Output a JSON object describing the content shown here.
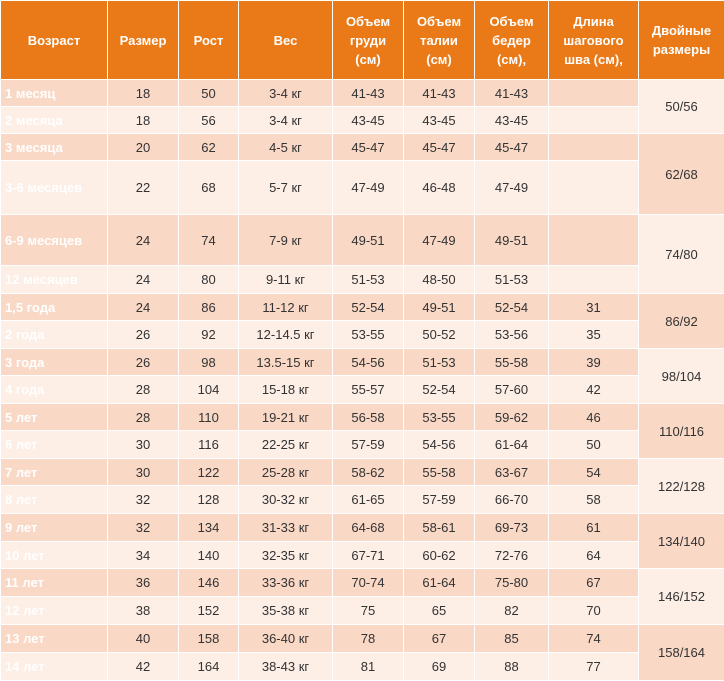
{
  "table": {
    "header": [
      "Возраст",
      "Размер",
      "Рост",
      "Вес",
      "Объем груди (см)",
      "Объем талии (см)",
      "Объем бедер (см),",
      "Длина шагового шва (см),",
      "Двойные размеры"
    ],
    "rows": [
      [
        "1 месяц",
        "18",
        "50",
        "3-4 кг",
        "41-43",
        "41-43",
        "41-43",
        null
      ],
      [
        "2 месяца",
        "18",
        "56",
        "3-4 кг",
        "43-45",
        "43-45",
        "43-45",
        null
      ],
      [
        "3 месяца",
        "20",
        "62",
        "4-5 кг",
        "45-47",
        "45-47",
        "45-47",
        null
      ],
      [
        "3-6 месяцев",
        "22",
        "68",
        "5-7 кг",
        "47-49",
        "46-48",
        "47-49",
        null
      ],
      [
        "6-9 месяцев",
        "24",
        "74",
        "7-9 кг",
        "49-51",
        "47-49",
        "49-51",
        null
      ],
      [
        "12 месяцев",
        "24",
        "80",
        "9-11 кг",
        "51-53",
        "48-50",
        "51-53",
        null
      ],
      [
        "1,5 года",
        "24",
        "86",
        "11-12 кг",
        "52-54",
        "49-51",
        "52-54",
        "31"
      ],
      [
        "2 года",
        "26",
        "92",
        "12-14.5 кг",
        "53-55",
        "50-52",
        "53-56",
        "35"
      ],
      [
        "3 года",
        "26",
        "98",
        "13.5-15 кг",
        "54-56",
        "51-53",
        "55-58",
        "39"
      ],
      [
        "4 года",
        "28",
        "104",
        "15-18 кг",
        "55-57",
        "52-54",
        "57-60",
        "42"
      ],
      [
        "5 лет",
        "28",
        "110",
        "19-21 кг",
        "56-58",
        "53-55",
        "59-62",
        "46"
      ],
      [
        "6 лет",
        "30",
        "116",
        "22-25 кг",
        "57-59",
        "54-56",
        "61-64",
        "50"
      ],
      [
        "7 лет",
        "30",
        "122",
        "25-28 кг",
        "58-62",
        "55-58",
        "63-67",
        "54"
      ],
      [
        "8 лет",
        "32",
        "128",
        "30-32 кг",
        "61-65",
        "57-59",
        "66-70",
        "58"
      ],
      [
        "9 лет",
        "32",
        "134",
        "31-33 кг",
        "64-68",
        "58-61",
        "69-73",
        "61"
      ],
      [
        "10 лет",
        "34",
        "140",
        "32-35 кг",
        "67-71",
        "60-62",
        "72-76",
        "64"
      ],
      [
        "11 лет",
        "36",
        "146",
        "33-36 кг",
        "70-74",
        "61-64",
        "75-80",
        "67"
      ],
      [
        "12 лет",
        "38",
        "152",
        "35-38 кг",
        "75",
        "65",
        "82",
        "70"
      ],
      [
        "13 лет",
        "40",
        "158",
        "36-40 кг",
        "78",
        "67",
        "85",
        "74"
      ],
      [
        "14 лет",
        "42",
        "164",
        "38-43 кг",
        "81",
        "69",
        "88",
        "77"
      ]
    ],
    "double_sizes": [
      "50/56",
      "62/68",
      "74/80",
      "86/92",
      "98/104",
      "110/116",
      "122/128",
      "134/140",
      "146/152",
      "158/164"
    ]
  }
}
